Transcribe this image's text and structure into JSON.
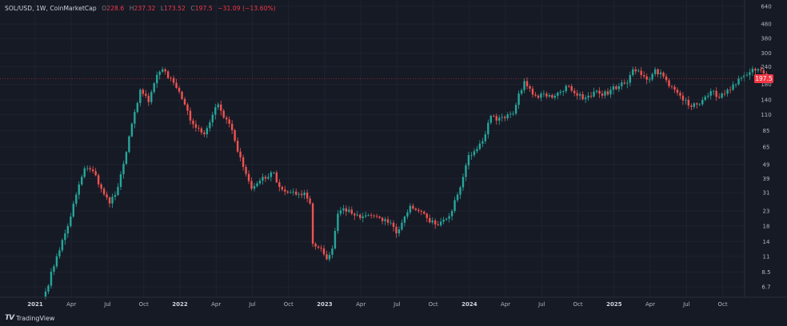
{
  "legend": {
    "symbol": "SOL/USD, 1W, CoinMarketCap",
    "open_label": "O",
    "open": "228.6",
    "high_label": "H",
    "high": "237.32",
    "low_label": "L",
    "low": "173.52",
    "close_label": "C",
    "close": "197.5",
    "change": "−31.09 (−13.60%)"
  },
  "branding": {
    "logo_text": "TradingView"
  },
  "colors": {
    "up": "#26a69a",
    "down": "#ef5350",
    "background": "#161a25",
    "price_tag": "#f23645"
  },
  "chart_data": {
    "type": "candlestick",
    "title": "SOL/USD, 1W, CoinMarketCap",
    "scale": "log",
    "ylim": [
      5.6,
      640
    ],
    "y_ticks": [
      "6.7",
      "8.5",
      "11",
      "14",
      "18",
      "23",
      "31",
      "39",
      "49",
      "65",
      "85",
      "110",
      "140",
      "180",
      "240",
      "300",
      "380",
      "480",
      "640"
    ],
    "x_ticks": [
      "2021",
      "Apr",
      "Jul",
      "Oct",
      "2022",
      "Apr",
      "Jul",
      "Oct",
      "2023",
      "Apr",
      "Jul",
      "Oct",
      "2024",
      "Apr",
      "Jul",
      "Oct",
      "2025",
      "Apr",
      "Jul",
      "Oct"
    ],
    "last_price": "197.5",
    "grid": true,
    "anchors": [
      [
        0,
        6.2
      ],
      [
        4,
        11
      ],
      [
        8,
        18
      ],
      [
        11,
        30
      ],
      [
        14,
        46
      ],
      [
        17,
        44
      ],
      [
        20,
        33
      ],
      [
        23,
        26
      ],
      [
        26,
        34
      ],
      [
        29,
        60
      ],
      [
        32,
        115
      ],
      [
        34,
        165
      ],
      [
        37,
        135
      ],
      [
        40,
        210
      ],
      [
        42,
        230
      ],
      [
        44,
        200
      ],
      [
        46,
        185
      ],
      [
        48,
        160
      ],
      [
        50,
        130
      ],
      [
        52,
        100
      ],
      [
        55,
        88
      ],
      [
        57,
        80
      ],
      [
        60,
        110
      ],
      [
        62,
        130
      ],
      [
        64,
        105
      ],
      [
        66,
        95
      ],
      [
        68,
        72
      ],
      [
        70,
        55
      ],
      [
        72,
        42
      ],
      [
        74,
        33
      ],
      [
        76,
        36
      ],
      [
        78,
        40
      ],
      [
        80,
        40
      ],
      [
        82,
        43
      ],
      [
        84,
        34
      ],
      [
        87,
        31
      ],
      [
        90,
        30
      ],
      [
        93,
        31
      ],
      [
        95,
        26
      ],
      [
        96,
        13.5
      ],
      [
        99,
        12.5
      ],
      [
        101,
        10.5
      ],
      [
        103,
        12.5
      ],
      [
        105,
        22
      ],
      [
        107,
        24
      ],
      [
        110,
        22
      ],
      [
        113,
        20.5
      ],
      [
        116,
        21.5
      ],
      [
        119,
        21
      ],
      [
        121,
        19.5
      ],
      [
        124,
        19
      ],
      [
        126,
        16
      ],
      [
        128,
        19
      ],
      [
        131,
        25
      ],
      [
        134,
        23
      ],
      [
        137,
        20.5
      ],
      [
        140,
        18.5
      ],
      [
        143,
        20
      ],
      [
        146,
        23
      ],
      [
        148,
        30
      ],
      [
        150,
        40
      ],
      [
        152,
        57
      ],
      [
        155,
        63
      ],
      [
        158,
        80
      ],
      [
        160,
        108
      ],
      [
        162,
        100
      ],
      [
        165,
        104
      ],
      [
        168,
        112
      ],
      [
        170,
        155
      ],
      [
        172,
        190
      ],
      [
        174,
        168
      ],
      [
        176,
        150
      ],
      [
        179,
        155
      ],
      [
        182,
        145
      ],
      [
        185,
        160
      ],
      [
        188,
        175
      ],
      [
        191,
        150
      ],
      [
        194,
        145
      ],
      [
        197,
        160
      ],
      [
        200,
        150
      ],
      [
        203,
        165
      ],
      [
        206,
        175
      ],
      [
        209,
        185
      ],
      [
        211,
        230
      ],
      [
        213,
        225
      ],
      [
        215,
        205
      ],
      [
        217,
        195
      ],
      [
        219,
        230
      ],
      [
        222,
        205
      ],
      [
        224,
        175
      ],
      [
        226,
        165
      ],
      [
        228,
        150
      ],
      [
        230,
        140
      ],
      [
        232,
        125
      ],
      [
        234,
        130
      ],
      [
        236,
        140
      ],
      [
        238,
        150
      ],
      [
        240,
        162
      ],
      [
        242,
        145
      ],
      [
        244,
        155
      ],
      [
        246,
        165
      ],
      [
        248,
        180
      ],
      [
        250,
        200
      ],
      [
        252,
        210
      ],
      [
        254,
        232
      ],
      [
        256,
        230
      ],
      [
        258,
        215
      ],
      [
        259,
        197.5
      ]
    ]
  }
}
